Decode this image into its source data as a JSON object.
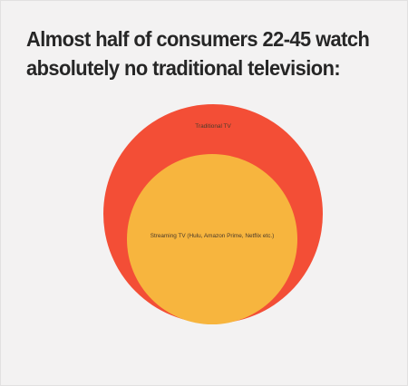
{
  "title": "Almost half of consumers 22-45 watch absolutely no traditional television:",
  "chart_data": {
    "type": "nested-circle",
    "title": "Almost half of consumers 22-45 watch absolutely no traditional television:",
    "series": [
      {
        "name": "Traditional TV",
        "label": "Traditional TV",
        "color": "#f34e36"
      },
      {
        "name": "Streaming TV (Hulu, Amazon Prime, Netflix etc.)",
        "label": "Streaming TV (Hulu, Amazon Prime, Netflix etc.)",
        "color": "#f7b53e"
      }
    ],
    "background": "#f3f2f2"
  }
}
